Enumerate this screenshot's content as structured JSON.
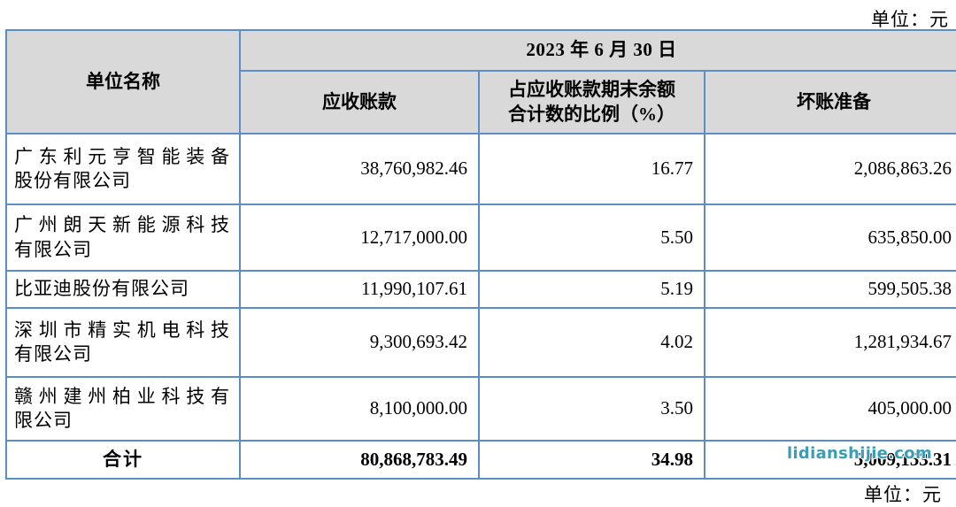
{
  "colors": {
    "border": "#5b8ec4",
    "header_bg": "#d9d9d9",
    "watermark": "#3a9db6",
    "text": "#000000"
  },
  "unit_note_top": "单位：元",
  "unit_note_bottom": "单位：元",
  "watermark_text": "lidianshijie.com",
  "table": {
    "headers": {
      "company": "单位名称",
      "date": "2023 年 6 月 30 日",
      "receivable": "应收账款",
      "ratio": "占应收账款期末余额\n合计数的比例（%）",
      "bad_debt": "坏账准备"
    },
    "rows": [
      {
        "company": "广东利元亨智能装备\n股份有限公司",
        "receivable": "38,760,982.46",
        "ratio": "16.77",
        "bad_debt": "2,086,863.26"
      },
      {
        "company": "广州朗天新能源科技\n有限公司",
        "receivable": "12,717,000.00",
        "ratio": "5.50",
        "bad_debt": "635,850.00"
      },
      {
        "company": "比亚迪股份有限公司",
        "receivable": "11,990,107.61",
        "ratio": "5.19",
        "bad_debt": "599,505.38"
      },
      {
        "company": "深圳市精实机电科技\n有限公司",
        "receivable": "9,300,693.42",
        "ratio": "4.02",
        "bad_debt": "1,281,934.67"
      },
      {
        "company": "赣州建州柏业科技有\n限公司",
        "receivable": "8,100,000.00",
        "ratio": "3.50",
        "bad_debt": "405,000.00"
      }
    ],
    "total": {
      "label": "合计",
      "receivable": "80,868,783.49",
      "ratio": "34.98",
      "bad_debt": "5,009,153.31"
    }
  }
}
